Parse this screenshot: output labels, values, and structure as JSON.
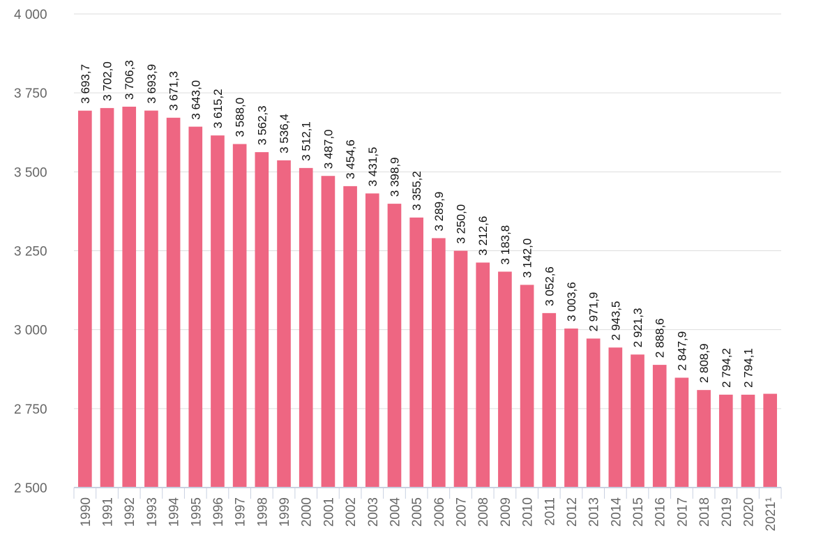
{
  "chart_data": {
    "type": "bar",
    "categories": [
      "1990",
      "1991",
      "1992",
      "1993",
      "1994",
      "1995",
      "1996",
      "1997",
      "1998",
      "1999",
      "2000",
      "2001",
      "2002",
      "2003",
      "2004",
      "2005",
      "2006",
      "2007",
      "2008",
      "2009",
      "2010",
      "2011",
      "2012",
      "2013",
      "2014",
      "2015",
      "2016",
      "2017",
      "2018",
      "2019",
      "2020",
      "2021¹"
    ],
    "values": [
      3693.7,
      3702.0,
      3706.3,
      3693.9,
      3671.3,
      3643.0,
      3615.2,
      3588.0,
      3562.3,
      3536.4,
      3512.1,
      3487.0,
      3454.6,
      3431.5,
      3398.9,
      3355.2,
      3289.9,
      3250.0,
      3212.6,
      3183.8,
      3142.0,
      3052.6,
      3003.6,
      2971.9,
      2943.5,
      2921.3,
      2888.6,
      2847.9,
      2808.9,
      2794.2,
      2794.1,
      2797.0
    ],
    "data_labels": [
      "3 693,7",
      "3 702,0",
      "3 706,3",
      "3 693,9",
      "3 671,3",
      "3 643,0",
      "3 615,2",
      "3 588,0",
      "3 562,3",
      "3 536,4",
      "3 512,1",
      "3 487,0",
      "3 454,6",
      "3 431,5",
      "3 398,9",
      "3 355,2",
      "3 289,9",
      "3 250,0",
      "3 212,6",
      "3 183,8",
      "3 142,0",
      "3 052,6",
      "3 003,6",
      "2 971,9",
      "2 943,5",
      "2 921,3",
      "2 888,6",
      "2 847,9",
      "2 808,9",
      "2 794,2",
      "2 794,1",
      ""
    ],
    "yticks": [
      2500,
      2750,
      3000,
      3250,
      3500,
      3750,
      4000
    ],
    "ytick_labels": [
      "2 500",
      "2 750",
      "3 000",
      "3 250",
      "3 500",
      "3 750",
      "4 000"
    ],
    "ylim": [
      2500,
      4000
    ],
    "title": "",
    "xlabel": "",
    "ylabel": "",
    "grid": true,
    "legend": "none",
    "bar_color": "#ee6682"
  }
}
